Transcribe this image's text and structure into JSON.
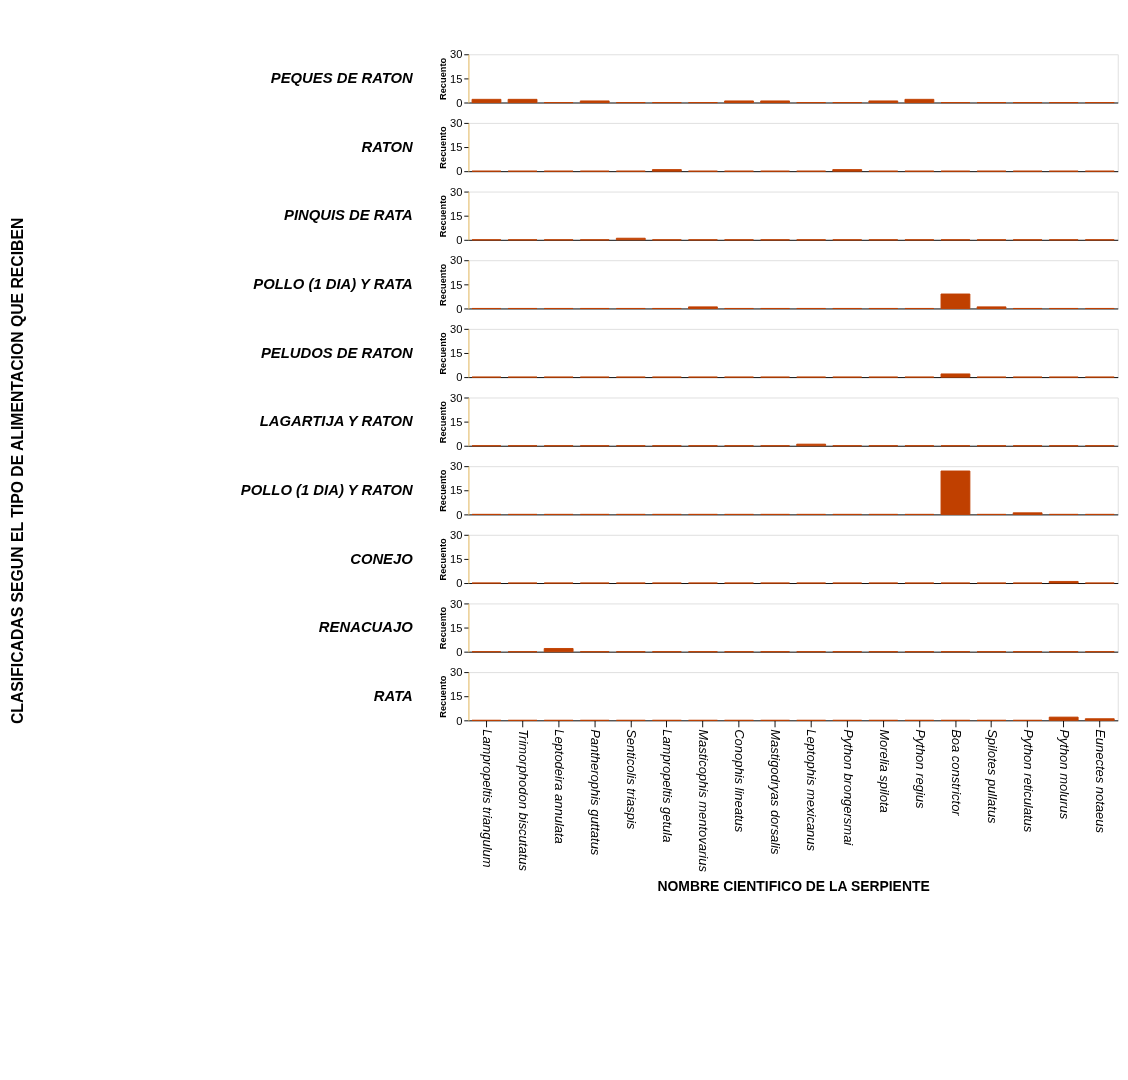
{
  "chart_data": [
    {
      "type": "bar",
      "title": "PEQUES DE RATON",
      "ylabel": "Recuento",
      "annotations": [
        "CLASIFICADAS SEGUN EL TIPO DE ALIMENTACION QUE RECIBEN"
      ],
      "values": [
        2,
        2,
        0,
        1,
        0,
        0,
        0,
        1,
        1,
        0,
        0,
        1,
        2,
        0,
        0,
        0,
        0,
        0
      ],
      "color": "#c04000",
      "ylim": [
        0,
        30
      ],
      "yticks": [
        0,
        15,
        30
      ],
      "grid": false,
      "tick_labels": "y"
    },
    {
      "type": "bar",
      "title": "RATON",
      "ylabel": "Recuento",
      "values": [
        0,
        0,
        0,
        0,
        0,
        1,
        0,
        0,
        0,
        0,
        1,
        0,
        0,
        0,
        0,
        0,
        0,
        0
      ],
      "color": "#c04000",
      "ylim": [
        0,
        30
      ],
      "yticks": [
        0,
        15,
        30
      ],
      "grid": false,
      "tick_labels": "y"
    },
    {
      "type": "bar",
      "title": "PINQUIS DE RATA",
      "ylabel": "Recuento",
      "values": [
        0,
        0,
        0,
        0,
        1,
        0,
        0,
        0,
        0,
        0,
        0,
        0,
        0,
        0,
        0,
        0,
        0,
        0
      ],
      "color": "#c04000",
      "ylim": [
        0,
        30
      ],
      "yticks": [
        0,
        15,
        30
      ],
      "grid": false,
      "tick_labels": "y"
    },
    {
      "type": "bar",
      "title": "POLLO (1 DIA) Y RATA",
      "ylabel": "Recuento",
      "values": [
        0,
        0,
        0,
        0,
        0,
        0,
        1,
        0,
        0,
        0,
        0,
        0,
        0,
        9,
        1,
        0,
        0,
        0
      ],
      "color": "#c04000",
      "ylim": [
        0,
        30
      ],
      "yticks": [
        0,
        15,
        30
      ],
      "grid": false,
      "tick_labels": "y"
    },
    {
      "type": "bar",
      "title": "PELUDOS DE RATON",
      "ylabel": "Recuento",
      "values": [
        0,
        0,
        0,
        0,
        0,
        0,
        0,
        0,
        0,
        0,
        0,
        0,
        0,
        2,
        0,
        0,
        0,
        0
      ],
      "color": "#c04000",
      "ylim": [
        0,
        30
      ],
      "yticks": [
        0,
        15,
        30
      ],
      "grid": false,
      "tick_labels": "y"
    },
    {
      "type": "bar",
      "title": "LAGARTIJA Y RATON",
      "ylabel": "Recuento",
      "values": [
        0,
        0,
        0,
        0,
        0,
        0,
        0,
        0,
        0,
        1,
        0,
        0,
        0,
        0,
        0,
        0,
        0,
        0
      ],
      "color": "#c04000",
      "ylim": [
        0,
        30
      ],
      "yticks": [
        0,
        15,
        30
      ],
      "grid": false,
      "tick_labels": "y"
    },
    {
      "type": "bar",
      "title": "POLLO (1 DIA) Y RATON",
      "ylabel": "Recuento",
      "values": [
        0,
        0,
        0,
        0,
        0,
        0,
        0,
        0,
        0,
        0,
        0,
        0,
        0,
        27,
        0,
        1,
        0,
        0
      ],
      "color": "#c04000",
      "ylim": [
        0,
        30
      ],
      "yticks": [
        0,
        15,
        30
      ],
      "grid": false,
      "tick_labels": "y"
    },
    {
      "type": "bar",
      "title": "CONEJO",
      "ylabel": "Recuento",
      "values": [
        0,
        0,
        0,
        0,
        0,
        0,
        0,
        0,
        0,
        0,
        0,
        0,
        0,
        0,
        0,
        0,
        1,
        0
      ],
      "color": "#c04000",
      "ylim": [
        0,
        30
      ],
      "yticks": [
        0,
        15,
        30
      ],
      "grid": false,
      "tick_labels": "y"
    },
    {
      "type": "bar",
      "title": "RENACUAJO",
      "ylabel": "Recuento",
      "values": [
        0,
        0,
        2,
        0,
        0,
        0,
        0,
        0,
        0,
        0,
        0,
        0,
        0,
        0,
        0,
        0,
        0,
        0
      ],
      "color": "#c04000",
      "ylim": [
        0,
        30
      ],
      "yticks": [
        0,
        15,
        30
      ],
      "grid": false,
      "tick_labels": "y"
    },
    {
      "type": "bar",
      "title": "RATA",
      "ylabel": "Recuento",
      "xlabel": "NOMBRE CIENTIFICO DE LA SERPIENTE",
      "categories": [
        "Lampropeltis triangulum",
        "Trimorphodon biscutatus",
        "Leptodeira annulata",
        "Pantherophis guttatus",
        "Senticolis triaspis",
        "Lampropeltis getula",
        "Masticophis mentovarius",
        "Conophis lineatus",
        "Mastigodryas dorsalis",
        "Leptophis mexicanus",
        "Python brongersmai",
        "Morelia spilota",
        "Python regius",
        "Boa constrictor",
        "Spilotes pullatus",
        "Python reticulatus",
        "Python molurus",
        "Eunectes notaeus"
      ],
      "values": [
        0,
        0,
        0,
        0,
        0,
        0,
        0,
        0,
        0,
        0,
        0,
        0,
        0,
        0,
        0,
        0,
        2,
        1
      ],
      "color": "#c04000",
      "ylim": [
        0,
        30
      ],
      "yticks": [
        0,
        15,
        30
      ],
      "grid": false
    }
  ]
}
